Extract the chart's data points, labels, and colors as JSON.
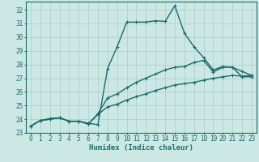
{
  "title": "",
  "xlabel": "Humidex (Indice chaleur)",
  "ylabel": "",
  "xlim": [
    -0.5,
    23.5
  ],
  "ylim": [
    23.0,
    32.6
  ],
  "yticks": [
    23,
    24,
    25,
    26,
    27,
    28,
    29,
    30,
    31,
    32
  ],
  "xticks": [
    0,
    1,
    2,
    3,
    4,
    5,
    6,
    7,
    8,
    9,
    10,
    11,
    12,
    13,
    14,
    15,
    16,
    17,
    18,
    19,
    20,
    21,
    22,
    23
  ],
  "bg_color": "#cce8e5",
  "grid_color": "#b0d0ce",
  "line_color": "#1a6b6b",
  "lines": [
    {
      "x": [
        0,
        1,
        2,
        3,
        4,
        5,
        6,
        7,
        8,
        9,
        10,
        11,
        12,
        13,
        14,
        15,
        16,
        17,
        18,
        19,
        20,
        21,
        22,
        23
      ],
      "y": [
        23.5,
        23.9,
        24.0,
        24.1,
        23.85,
        23.85,
        23.7,
        23.6,
        27.7,
        29.3,
        31.1,
        31.1,
        31.1,
        31.2,
        31.15,
        32.3,
        30.3,
        29.3,
        28.5,
        27.6,
        27.85,
        27.8,
        27.1,
        27.1
      ]
    },
    {
      "x": [
        0,
        1,
        2,
        3,
        4,
        5,
        6,
        7,
        8,
        9,
        10,
        11,
        12,
        13,
        14,
        15,
        16,
        17,
        18,
        19,
        20,
        21,
        22,
        23
      ],
      "y": [
        23.5,
        23.9,
        24.05,
        24.1,
        23.85,
        23.85,
        23.65,
        24.4,
        25.55,
        25.85,
        26.3,
        26.7,
        27.0,
        27.3,
        27.6,
        27.8,
        27.85,
        28.15,
        28.3,
        27.45,
        27.8,
        27.8,
        27.5,
        27.2
      ]
    },
    {
      "x": [
        0,
        1,
        2,
        3,
        4,
        5,
        6,
        7,
        8,
        9,
        10,
        11,
        12,
        13,
        14,
        15,
        16,
        17,
        18,
        19,
        20,
        21,
        22,
        23
      ],
      "y": [
        23.5,
        23.9,
        24.0,
        24.1,
        23.85,
        23.85,
        23.65,
        24.35,
        24.9,
        25.1,
        25.4,
        25.65,
        25.85,
        26.1,
        26.3,
        26.5,
        26.6,
        26.7,
        26.85,
        27.0,
        27.1,
        27.2,
        27.15,
        27.2
      ]
    }
  ],
  "marker": "+",
  "markersize": 3.5,
  "linewidth": 1.0,
  "label_fontsize": 6.5,
  "tick_fontsize": 5.5
}
